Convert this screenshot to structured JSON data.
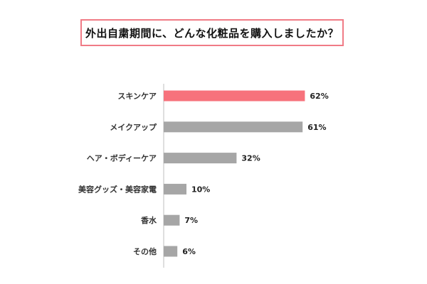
{
  "chart_data": {
    "type": "bar",
    "orientation": "horizontal",
    "title": "外出自粛期間に、どんな化粧品を購入しましたか？",
    "categories": [
      "スキンケア",
      "メイクアップ",
      "ヘア・ボディーケア",
      "美容グッズ・美容家電",
      "香水",
      "その他"
    ],
    "values": [
      62,
      61,
      32,
      10,
      7,
      6
    ],
    "value_labels": [
      "62%",
      "61%",
      "32%",
      "10%",
      "7%",
      "6%"
    ],
    "xlim": [
      0,
      100
    ],
    "grid": false,
    "legend": "none",
    "colors": {
      "highlight": "#f7727c",
      "default": "#a6a6a6",
      "title_border": "#f07b86",
      "axis": "#bfbfbf"
    },
    "highlight_index": 0
  }
}
